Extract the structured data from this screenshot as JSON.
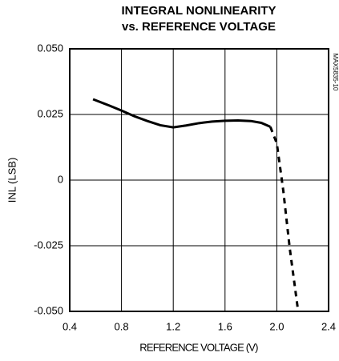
{
  "chart_data": {
    "type": "line",
    "title": "INTEGRAL NONLINEARITY",
    "subtitle": "vs. REFERENCE VOLTAGE",
    "x_label": "REFERENCE VOLTAGE (V)",
    "y_label": "INL (LSB)",
    "annotation": "MAX5835-10",
    "xlim": [
      0.4,
      2.4
    ],
    "xticks": [
      0.4,
      0.8,
      1.2,
      1.6,
      {
        "value": 2,
        "label": "2.0"
      },
      2.4
    ],
    "ylim": [
      -0.05,
      0.05
    ],
    "yticks": [
      {
        "value": -0.05,
        "label": "-0.050"
      },
      {
        "value": -0.025,
        "label": "-0.025"
      },
      0,
      {
        "value": 0.025,
        "label": "0.025"
      },
      {
        "value": 0.05,
        "label": "0.050"
      }
    ],
    "grid": true,
    "series": [
      {
        "color": "#000000",
        "line_style": "solid",
        "x": [
          0.58,
          0.7,
          0.8,
          0.9,
          1.0,
          1.1,
          1.2,
          1.3,
          1.4,
          1.5,
          1.6,
          1.7,
          1.8,
          1.88,
          1.95
        ],
        "values": [
          0.0308,
          0.0285,
          0.0265,
          0.0243,
          0.0225,
          0.0209,
          0.0201,
          0.0208,
          0.0217,
          0.0223,
          0.0226,
          0.0227,
          0.0225,
          0.0218,
          0.0203
        ]
      },
      {
        "color": "#000000",
        "line_style": "dashed",
        "x": [
          1.95,
          2.0,
          2.05,
          2.1,
          2.165
        ],
        "values": [
          0.0203,
          0.014,
          -0.004,
          -0.026,
          -0.05
        ]
      }
    ]
  }
}
